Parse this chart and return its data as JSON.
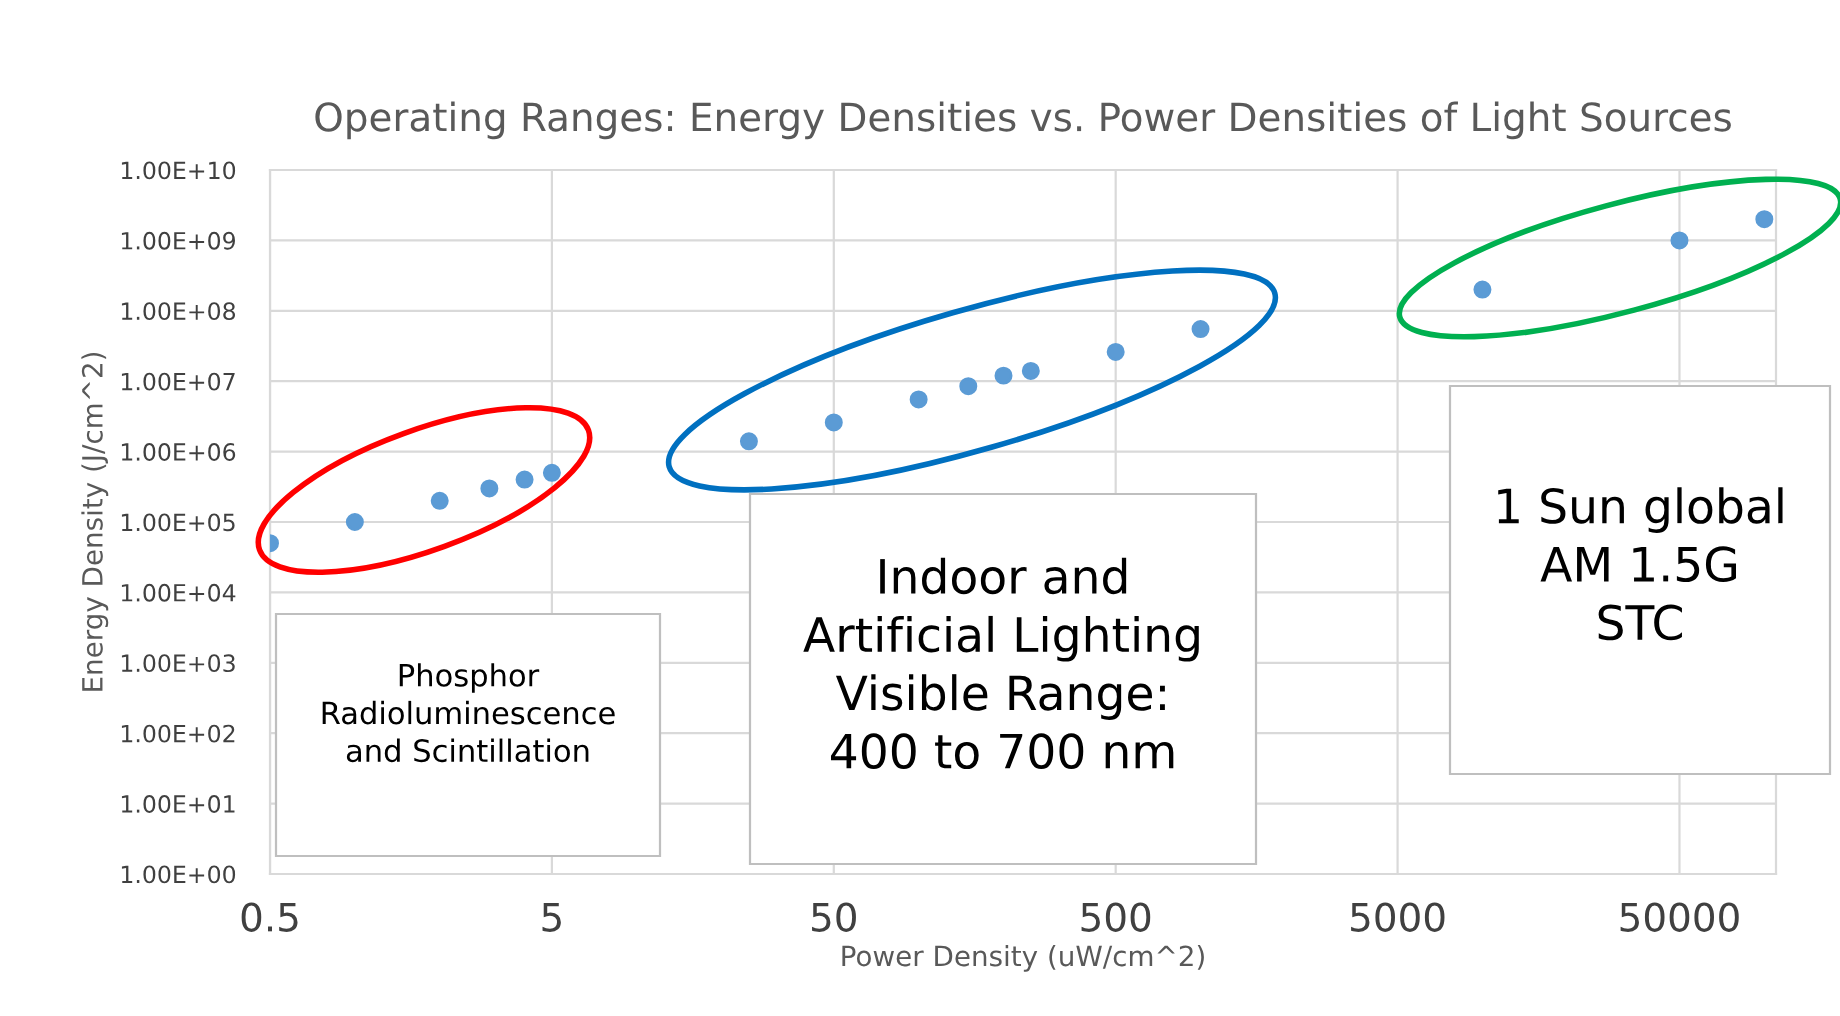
{
  "chart_data": {
    "type": "scatter",
    "title": "Operating Ranges: Energy Densities vs. Power Densities of Light Sources",
    "xlabel": "Power Density (uW/cm^2)",
    "ylabel": "Energy Density (J/cm^2)",
    "x": [
      0.5,
      1,
      2,
      3,
      4,
      5,
      25,
      50,
      100,
      150,
      200,
      250,
      500,
      1000,
      10000,
      50000,
      100000
    ],
    "series": [
      {
        "color": "#5b9bd5",
        "values": [
          50000,
          100000,
          200000,
          300000,
          400000,
          500000,
          1400000,
          2600000,
          5500000,
          8500000,
          12000000,
          14000000,
          26000000,
          55000000,
          200000000,
          1000000000,
          2000000000
        ]
      }
    ],
    "log": "xy",
    "marker": "circle",
    "grid": true,
    "legend": false,
    "xlim": [
      0.5,
      110000
    ],
    "xticks": [
      0.5,
      5,
      50,
      500,
      5000,
      50000
    ],
    "ylim": [
      1,
      10000000000
    ],
    "yticks": [
      {
        "value": 1,
        "label": "1.00E+00"
      },
      {
        "value": 10,
        "label": "1.00E+01"
      },
      {
        "value": 100,
        "label": "1.00E+02"
      },
      {
        "value": 1000,
        "label": "1.00E+03"
      },
      {
        "value": 10000,
        "label": "1.00E+04"
      },
      {
        "value": 100000,
        "label": "1.00E+05"
      },
      {
        "value": 1000000,
        "label": "1.00E+06"
      },
      {
        "value": 10000000,
        "label": "1.00E+07"
      },
      {
        "value": 100000000,
        "label": "1.00E+08"
      },
      {
        "value": 1000000000,
        "label": "1.00E+09"
      },
      {
        "value": 10000000000,
        "label": "1.00E+10"
      }
    ],
    "annotations": [
      "Phosphor\nRadioluminescence\nand Scintillation",
      "Indoor and\nArtificial Lighting\nVisible Range:\n400 to 700 nm",
      "1 Sun global\nAM 1.5G\nSTC"
    ]
  }
}
